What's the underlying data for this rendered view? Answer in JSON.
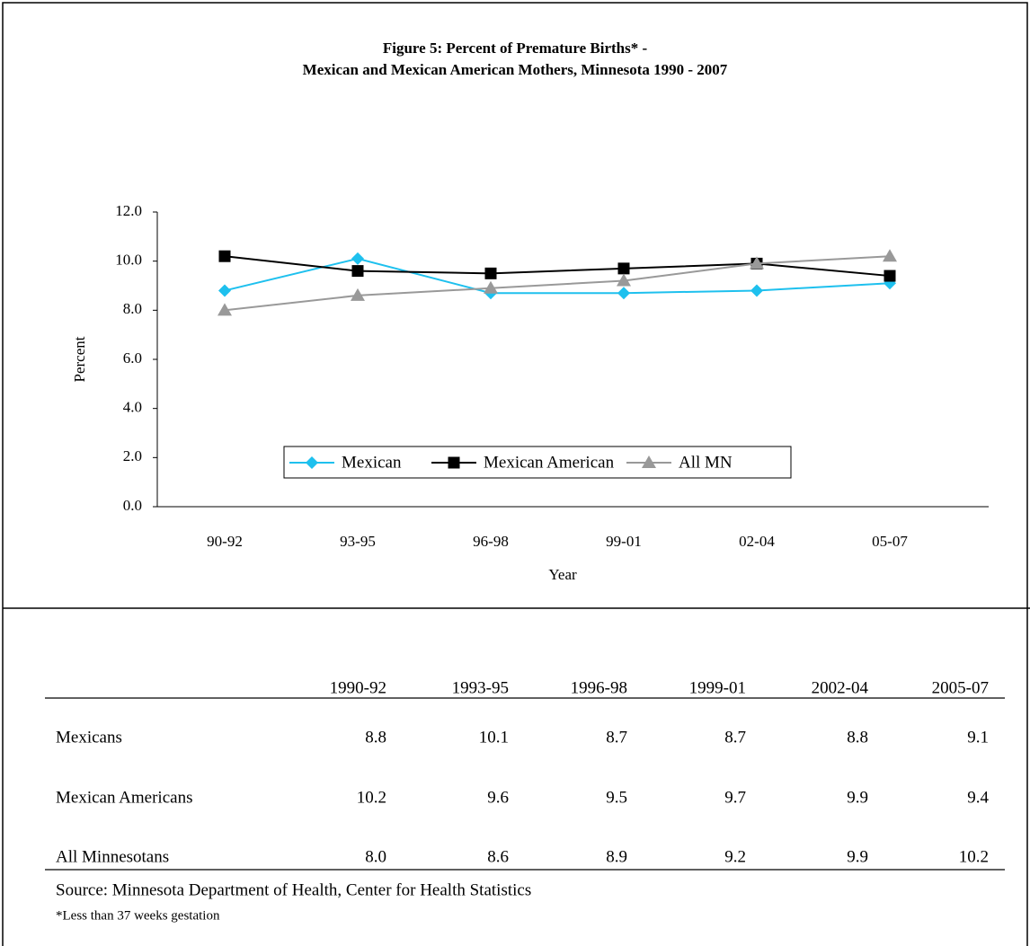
{
  "chart_data": {
    "type": "line",
    "title": "Figure 5:  Percent of Premature  Births* -",
    "subtitle": "Mexican and Mexican American Mothers, Minnesota 1990 - 2007",
    "x_label": "Year",
    "y_label": "Percent",
    "categories": [
      "90-92",
      "93-95",
      "96-98",
      "99-01",
      "02-04",
      "05-07"
    ],
    "series": [
      {
        "name": "Mexican",
        "color": "#1ec0ee",
        "marker": "diamond",
        "values": [
          8.8,
          10.1,
          8.7,
          8.7,
          8.8,
          9.1
        ]
      },
      {
        "name": "Mexican American",
        "color": "#000000",
        "marker": "square",
        "values": [
          10.2,
          9.6,
          9.5,
          9.7,
          9.9,
          9.4
        ]
      },
      {
        "name": "All MN",
        "color": "#999999",
        "marker": "triangle",
        "values": [
          8.0,
          8.6,
          8.9,
          9.2,
          9.9,
          10.2
        ]
      }
    ],
    "ylim": [
      0,
      12
    ],
    "yticks": [
      {
        "value": 0,
        "label": "0.0"
      },
      {
        "value": 2,
        "label": "2.0"
      },
      {
        "value": 4,
        "label": "4.0"
      },
      {
        "value": 6,
        "label": "6.0"
      },
      {
        "value": 8,
        "label": "8.0"
      },
      {
        "value": 10,
        "label": "10.0"
      },
      {
        "value": 12,
        "label": "12.0"
      }
    ],
    "grid": false,
    "legend": "bottom"
  },
  "table": {
    "header": [
      "1990-92",
      "1993-95",
      "1996-98",
      "1999-01",
      "2002-04",
      "2005-07"
    ],
    "rows": [
      [
        "Mexicans",
        "8.8",
        "10.1",
        "8.7",
        "8.7",
        "8.8",
        "9.1"
      ],
      [
        "Mexican Americans",
        "10.2",
        "9.6",
        "9.5",
        "9.7",
        "9.9",
        "9.4"
      ],
      [
        "All Minnesotans",
        "8.0",
        "8.6",
        "8.9",
        "9.2",
        "9.9",
        "10.2"
      ]
    ]
  },
  "source": "Source: Minnesota Department of Health, Center for Health Statistics",
  "note": "*Less than 37 weeks gestation"
}
